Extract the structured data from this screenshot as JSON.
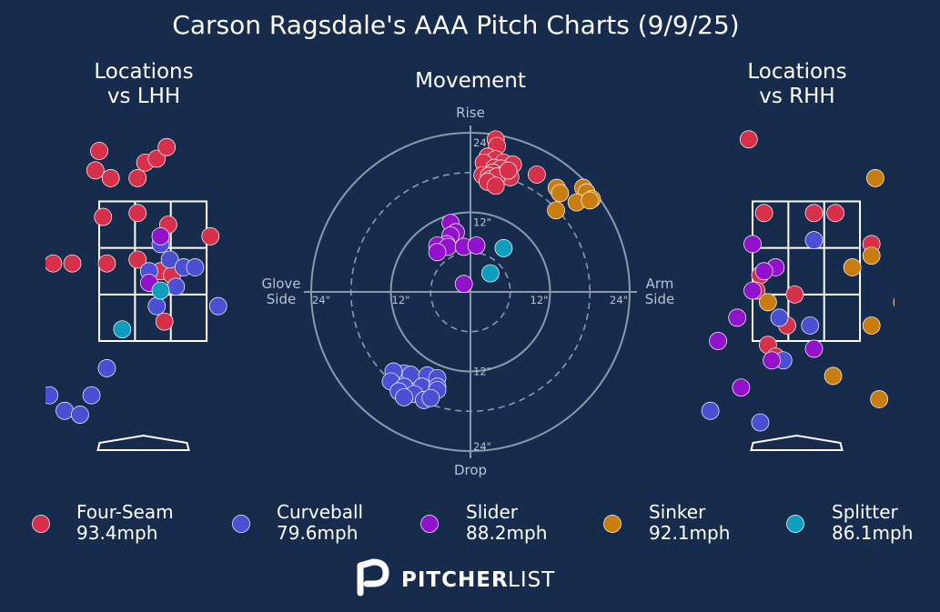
{
  "title": "Carson Ragsdale's AAA Pitch Charts (9/9/25)",
  "colors": {
    "background": "#172b4d",
    "text": "#ffffff",
    "muted": "#b8c2d2",
    "zone_line": "#ffffff",
    "ring": "#8d99ad",
    "pitch_types": {
      "Four-Seam": "#d7304a",
      "Curveball": "#4a4fd4",
      "Slider": "#9212cc",
      "Sinker": "#c97d0f",
      "Splitter": "#0e9fbe"
    }
  },
  "brand": {
    "logo": "pitcher-list-logo",
    "name_bold": "PITCHER",
    "name_light": "LIST"
  },
  "chart_data": [
    {
      "type": "scatter",
      "title": "Locations\nvs LHH",
      "xlabel": "",
      "ylabel": "",
      "grid": false,
      "x_unit": "ft from plate center (catcher view)",
      "y_unit": "ft above ground",
      "xlim": [
        -1.4,
        1.15
      ],
      "ylim": [
        -0.1,
        5.0
      ],
      "strike_zone": {
        "x": [
          -0.7,
          0.7
        ],
        "y": [
          1.6,
          3.4
        ]
      },
      "series": [
        {
          "name": "Four-Seam",
          "points": [
            [
              -0.7,
              4.05
            ],
            [
              -0.75,
              3.8
            ],
            [
              -0.55,
              3.7
            ],
            [
              -0.1,
              3.9
            ],
            [
              0.05,
              3.95
            ],
            [
              0.18,
              4.1
            ],
            [
              -0.2,
              3.7
            ],
            [
              -0.65,
              3.2
            ],
            [
              -0.2,
              3.25
            ],
            [
              0.2,
              3.1
            ],
            [
              0.75,
              2.95
            ],
            [
              -1.3,
              2.6
            ],
            [
              -1.05,
              2.6
            ],
            [
              -0.6,
              2.6
            ],
            [
              -0.2,
              2.65
            ],
            [
              0.1,
              2.5
            ],
            [
              0.25,
              2.45
            ],
            [
              0.15,
              1.85
            ]
          ]
        },
        {
          "name": "Curveball",
          "points": [
            [
              0.1,
              2.85
            ],
            [
              0.22,
              2.65
            ],
            [
              0.4,
              2.55
            ],
            [
              0.55,
              2.55
            ],
            [
              -0.05,
              2.5
            ],
            [
              0.3,
              2.3
            ],
            [
              0.05,
              2.05
            ],
            [
              0.85,
              2.05
            ],
            [
              -0.6,
              1.25
            ],
            [
              -1.35,
              0.9
            ],
            [
              -0.8,
              0.9
            ],
            [
              -1.15,
              0.7
            ],
            [
              -0.95,
              0.65
            ]
          ]
        },
        {
          "name": "Slider",
          "points": [
            [
              0.1,
              2.95
            ],
            [
              -0.05,
              2.35
            ]
          ]
        },
        {
          "name": "Sinker",
          "points": []
        },
        {
          "name": "Splitter",
          "points": [
            [
              0.1,
              2.25
            ],
            [
              -0.4,
              1.75
            ]
          ]
        }
      ]
    },
    {
      "type": "scatter",
      "title": "Movement",
      "xlabel": "",
      "ylabel": "",
      "x_unit": "in (horizontal break, arm side positive)",
      "y_unit": "in (induced vertical break)",
      "xlim": [
        -25,
        25
      ],
      "ylim": [
        -25,
        25
      ],
      "rings": [
        6,
        12,
        18,
        24
      ],
      "axis_labels": {
        "top": "Rise",
        "bottom": "Drop",
        "left": "Glove\nSide",
        "right": "Arm\nSide"
      },
      "ring_labels": [
        "24\"",
        "12\"",
        "12\"",
        "24\"",
        "24\"",
        "12\"",
        "12\"",
        "24\""
      ],
      "series": [
        {
          "name": "Four-Seam",
          "points": [
            [
              3.8,
              23.0
            ],
            [
              4.0,
              22.0
            ],
            [
              2.6,
              20.4
            ],
            [
              3.8,
              20.0
            ],
            [
              2.0,
              19.5
            ],
            [
              5.0,
              19.5
            ],
            [
              6.4,
              19.2
            ],
            [
              3.6,
              18.7
            ],
            [
              4.6,
              18.6
            ],
            [
              3.4,
              18.0
            ],
            [
              5.2,
              17.8
            ],
            [
              1.8,
              17.6
            ],
            [
              2.8,
              17.5
            ],
            [
              4.4,
              17.4
            ],
            [
              3.0,
              17.0
            ],
            [
              6.0,
              17.3
            ],
            [
              4.0,
              17.4
            ],
            [
              5.7,
              18.3
            ],
            [
              10.0,
              17.7
            ],
            [
              2.6,
              16.6
            ],
            [
              3.8,
              16.0
            ]
          ]
        },
        {
          "name": "Curveball",
          "points": [
            [
              -10.0,
              -12.3
            ],
            [
              -11.6,
              -12.0
            ],
            [
              -9.0,
              -12.5
            ],
            [
              -6.5,
              -12.6
            ],
            [
              -5.0,
              -13.0
            ],
            [
              -12.0,
              -13.5
            ],
            [
              -10.0,
              -14.3
            ],
            [
              -7.3,
              -14.3
            ],
            [
              -5.0,
              -14.3
            ],
            [
              -10.8,
              -15.0
            ],
            [
              -8.5,
              -15.4
            ],
            [
              -5.0,
              -14.8
            ],
            [
              -10.0,
              -15.9
            ],
            [
              -7.0,
              -16.3
            ],
            [
              -6.0,
              -16.0
            ]
          ]
        },
        {
          "name": "Slider",
          "points": [
            [
              -3.0,
              10.4
            ],
            [
              -2.2,
              9.0
            ],
            [
              -3.0,
              8.5
            ],
            [
              -3.6,
              7.2
            ],
            [
              -5.0,
              7.0
            ],
            [
              -3.4,
              6.8
            ],
            [
              -1.0,
              6.8
            ],
            [
              0.9,
              7.0
            ],
            [
              -5.0,
              6.0
            ],
            [
              -1.0,
              1.2
            ]
          ]
        },
        {
          "name": "Sinker",
          "points": [
            [
              13.0,
              15.7
            ],
            [
              13.5,
              14.9
            ],
            [
              17.0,
              15.7
            ],
            [
              17.5,
              15.0
            ],
            [
              16.0,
              13.5
            ],
            [
              18.3,
              14.0
            ],
            [
              12.9,
              12.3
            ],
            [
              18.0,
              13.8
            ]
          ]
        },
        {
          "name": "Splitter",
          "points": [
            [
              5.0,
              6.6
            ],
            [
              3.0,
              2.8
            ]
          ]
        }
      ]
    },
    {
      "type": "scatter",
      "title": "Locations\nvs RHH",
      "xlabel": "",
      "ylabel": "",
      "grid": false,
      "x_unit": "ft from plate center (catcher view)",
      "y_unit": "ft above ground",
      "xlim": [
        -1.4,
        1.15
      ],
      "ylim": [
        -0.1,
        5.0
      ],
      "strike_zone": {
        "x": [
          -0.7,
          0.7
        ],
        "y": [
          1.6,
          3.4
        ]
      },
      "series": [
        {
          "name": "Four-Seam",
          "points": [
            [
              -0.75,
              4.2
            ],
            [
              -0.55,
              3.25
            ],
            [
              0.1,
              3.25
            ],
            [
              0.38,
              3.25
            ],
            [
              0.85,
              2.85
            ],
            [
              -0.6,
              2.45
            ],
            [
              -0.65,
              2.25
            ],
            [
              -0.15,
              2.2
            ],
            [
              -0.25,
              1.8
            ],
            [
              -0.5,
              1.55
            ],
            [
              -0.4,
              1.4
            ]
          ]
        },
        {
          "name": "Curveball",
          "points": [
            [
              0.1,
              2.9
            ],
            [
              -0.35,
              1.9
            ],
            [
              0.05,
              1.8
            ],
            [
              -0.3,
              1.35
            ],
            [
              -1.25,
              0.7
            ],
            [
              -0.6,
              0.55
            ]
          ]
        },
        {
          "name": "Slider",
          "points": [
            [
              -0.7,
              2.85
            ],
            [
              -0.4,
              2.55
            ],
            [
              -0.55,
              2.5
            ],
            [
              -0.7,
              2.25
            ],
            [
              -0.9,
              1.9
            ],
            [
              -1.15,
              1.6
            ],
            [
              -0.45,
              1.35
            ],
            [
              0.1,
              1.5
            ],
            [
              -0.85,
              1.0
            ]
          ]
        },
        {
          "name": "Sinker",
          "points": [
            [
              0.9,
              3.7
            ],
            [
              0.6,
              2.55
            ],
            [
              0.85,
              2.7
            ],
            [
              -0.5,
              2.1
            ],
            [
              1.25,
              2.1
            ],
            [
              0.85,
              1.8
            ],
            [
              0.35,
              1.15
            ],
            [
              0.95,
              0.85
            ]
          ]
        },
        {
          "name": "Splitter",
          "points": []
        }
      ]
    }
  ],
  "legend": [
    {
      "name": "Four-Seam",
      "speed": "93.4mph"
    },
    {
      "name": "Curveball",
      "speed": "79.6mph"
    },
    {
      "name": "Slider",
      "speed": "88.2mph"
    },
    {
      "name": "Sinker",
      "speed": "92.1mph"
    },
    {
      "name": "Splitter",
      "speed": "86.1mph"
    }
  ]
}
